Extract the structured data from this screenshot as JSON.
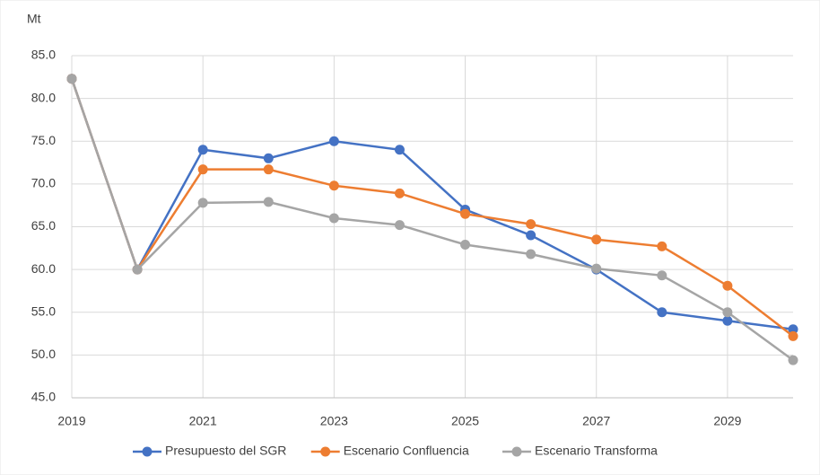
{
  "chart_data": {
    "type": "line",
    "y_label": "Mt",
    "x": [
      2019,
      2020,
      2021,
      2022,
      2023,
      2024,
      2025,
      2026,
      2027,
      2028,
      2029,
      2030
    ],
    "xlim": [
      2019,
      2030
    ],
    "xticks": [
      2019,
      2021,
      2023,
      2025,
      2027,
      2029
    ],
    "ylim": [
      45,
      85
    ],
    "yticks": [
      {
        "value": 45,
        "label": "45.0"
      },
      {
        "value": 50,
        "label": "50.0"
      },
      {
        "value": 55,
        "label": "55.0"
      },
      {
        "value": 60,
        "label": "60.0"
      },
      {
        "value": 65,
        "label": "65.0"
      },
      {
        "value": 70,
        "label": "70.0"
      },
      {
        "value": 75,
        "label": "75.0"
      },
      {
        "value": 80,
        "label": "80.0"
      },
      {
        "value": 85,
        "label": "85.0"
      }
    ],
    "grid": true,
    "legend": "bottom",
    "series": [
      {
        "name": "Presupuesto del SGR",
        "color": "#4472c4",
        "values": [
          82.3,
          60,
          74,
          73,
          75,
          74,
          67,
          64,
          60,
          55,
          54,
          53
        ]
      },
      {
        "name": "Escenario Confluencia",
        "color": "#ed7d31",
        "values": [
          82.3,
          60,
          71.7,
          71.7,
          69.8,
          68.9,
          66.5,
          65.3,
          63.5,
          62.7,
          58.1,
          52.2
        ]
      },
      {
        "name": "Escenario Transforma",
        "color": "#a5a5a5",
        "values": [
          82.3,
          60,
          67.8,
          67.9,
          66,
          65.2,
          62.9,
          61.8,
          60.1,
          59.3,
          55,
          49.4
        ]
      }
    ]
  }
}
